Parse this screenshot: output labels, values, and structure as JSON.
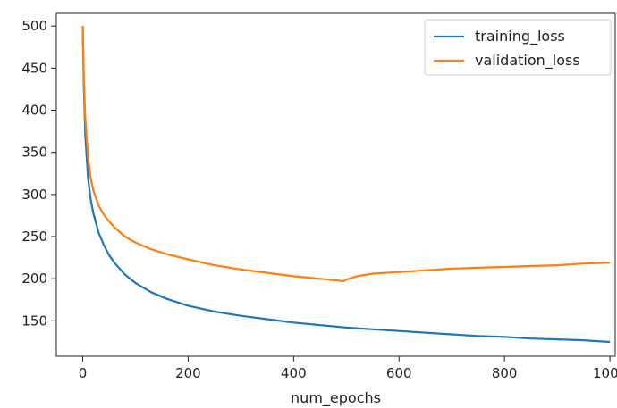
{
  "chart_data": {
    "type": "line",
    "title": "",
    "xlabel": "num_epochs",
    "ylabel": "",
    "xlim": [
      -50,
      1010
    ],
    "ylim": [
      108,
      515
    ],
    "xticks": [
      0,
      200,
      400,
      600,
      800,
      1000
    ],
    "yticks": [
      150,
      200,
      250,
      300,
      350,
      400,
      450,
      500
    ],
    "grid": false,
    "legend_position": "top-right",
    "series": [
      {
        "name": "training_loss",
        "color": "#1f77b4",
        "x": [
          0,
          2,
          5,
          10,
          15,
          20,
          30,
          40,
          50,
          60,
          80,
          100,
          130,
          160,
          200,
          250,
          300,
          350,
          400,
          450,
          500,
          550,
          600,
          650,
          700,
          750,
          800,
          850,
          900,
          950,
          1000
        ],
        "y": [
          500,
          430,
          370,
          320,
          295,
          278,
          255,
          240,
          228,
          219,
          205,
          195,
          184,
          176,
          168,
          161,
          156,
          152,
          148,
          145,
          142,
          140,
          138,
          136,
          134,
          132,
          131,
          129,
          128,
          127,
          125
        ]
      },
      {
        "name": "validation_loss",
        "color": "#ff7f0e",
        "x": [
          0,
          2,
          5,
          10,
          15,
          20,
          30,
          40,
          50,
          60,
          80,
          100,
          130,
          160,
          200,
          250,
          300,
          350,
          400,
          450,
          495,
          500,
          520,
          550,
          600,
          650,
          700,
          750,
          800,
          850,
          900,
          950,
          1000
        ],
        "y": [
          500,
          440,
          390,
          345,
          320,
          305,
          287,
          276,
          268,
          261,
          250,
          243,
          235,
          229,
          223,
          216,
          211,
          207,
          203,
          200,
          197,
          199,
          203,
          206,
          208,
          210,
          212,
          213,
          214,
          215,
          216,
          218,
          219
        ]
      }
    ]
  }
}
